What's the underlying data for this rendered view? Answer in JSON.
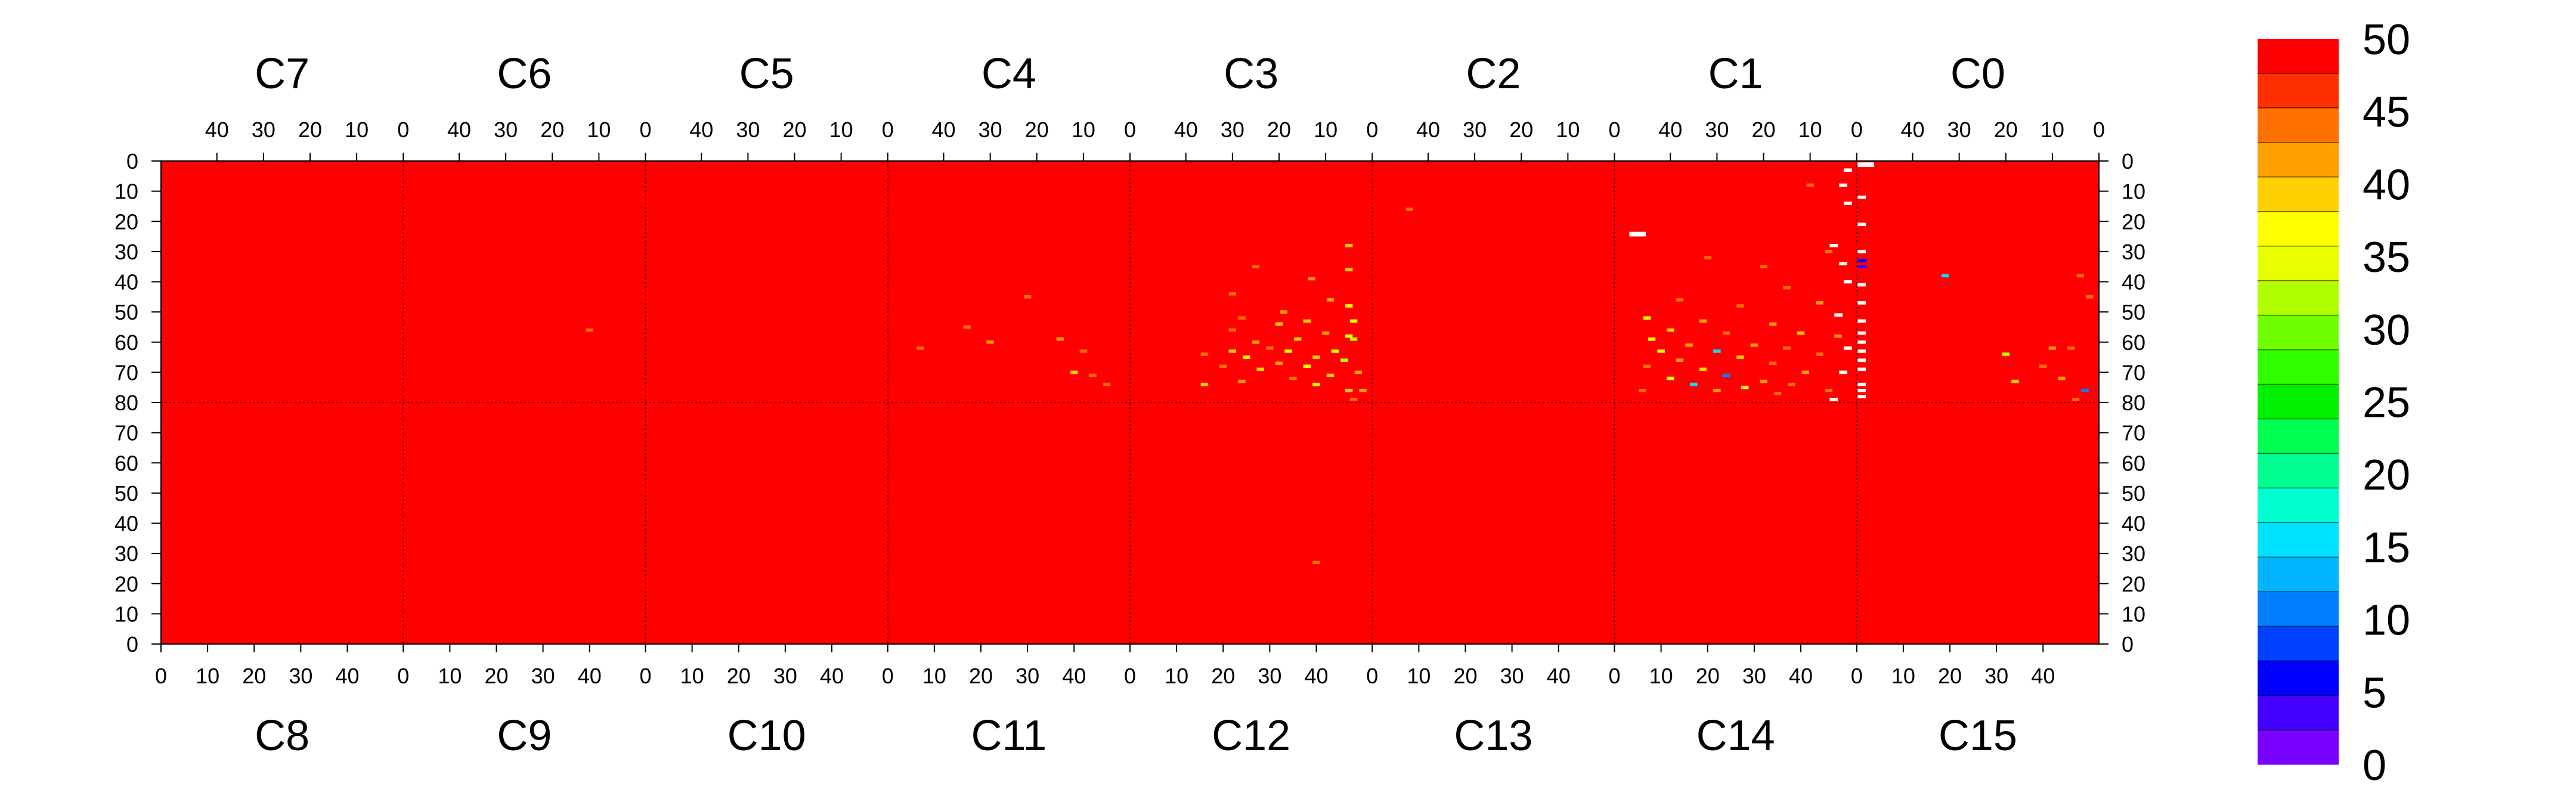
{
  "chart_data": {
    "type": "heatmap",
    "title": "",
    "layout_note": "16 sensor chips arranged in two rows of eight; top row chips C7..C0 with x axis decreasing 40..0 and y axis 0..80 downward; bottom row chips C8..C15 with x axis 0..40 and y axis 80..0 downward",
    "top_row_chips": [
      "C7",
      "C6",
      "C5",
      "C4",
      "C3",
      "C2",
      "C1",
      "C0"
    ],
    "bottom_row_chips": [
      "C8",
      "C9",
      "C10",
      "C11",
      "C12",
      "C13",
      "C14",
      "C15"
    ],
    "top_x_ticks": [
      "40",
      "30",
      "20",
      "10",
      "0"
    ],
    "bottom_x_ticks": [
      "0",
      "10",
      "20",
      "30",
      "40"
    ],
    "y_ticks_top_half": [
      "0",
      "10",
      "20",
      "30",
      "40",
      "50",
      "60",
      "70",
      "80"
    ],
    "y_ticks_bottom_half": [
      "70",
      "60",
      "50",
      "40",
      "30",
      "20",
      "10",
      "0"
    ],
    "x_range_per_chip": [
      0,
      52
    ],
    "y_range_per_chip": [
      0,
      80
    ],
    "background_value": 50,
    "colorbar": {
      "min": 0,
      "max": 50,
      "tick_labels": [
        "0",
        "5",
        "10",
        "15",
        "20",
        "25",
        "30",
        "35",
        "40",
        "45",
        "50"
      ],
      "colors": [
        "#7a00ff",
        "#4400ff",
        "#0000ff",
        "#0040ff",
        "#0080ff",
        "#00b4ff",
        "#00e0ff",
        "#00ffd0",
        "#00ff90",
        "#00ff50",
        "#00f000",
        "#30ff00",
        "#70ff00",
        "#b0ff00",
        "#e8ff00",
        "#ffff00",
        "#ffd000",
        "#ffa000",
        "#ff7000",
        "#ff3000",
        "#ff0000"
      ]
    },
    "anomalies": [
      {
        "chip": "C6",
        "x": 12,
        "y": 56,
        "v": 44
      },
      {
        "chip": "C4",
        "x": 35,
        "y": 55,
        "v": 44
      },
      {
        "chip": "C4",
        "x": 30,
        "y": 60,
        "v": 43
      },
      {
        "chip": "C4",
        "x": 45,
        "y": 62,
        "v": 45
      },
      {
        "chip": "C4",
        "x": 15,
        "y": 59,
        "v": 42
      },
      {
        "chip": "C4",
        "x": 10,
        "y": 63,
        "v": 44
      },
      {
        "chip": "C4",
        "x": 12,
        "y": 70,
        "v": 40
      },
      {
        "chip": "C4",
        "x": 8,
        "y": 71,
        "v": 44
      },
      {
        "chip": "C4",
        "x": 5,
        "y": 74,
        "v": 45
      },
      {
        "chip": "C4",
        "x": 22,
        "y": 45,
        "v": 46
      },
      {
        "chip": "C3",
        "x": 5,
        "y": 28,
        "v": 40
      },
      {
        "chip": "C3",
        "x": 5,
        "y": 36,
        "v": 41
      },
      {
        "chip": "C3",
        "x": 25,
        "y": 35,
        "v": 45
      },
      {
        "chip": "C3",
        "x": 13,
        "y": 39,
        "v": 42
      },
      {
        "chip": "C3",
        "x": 30,
        "y": 44,
        "v": 44
      },
      {
        "chip": "C3",
        "x": 9,
        "y": 46,
        "v": 43
      },
      {
        "chip": "C3",
        "x": 5,
        "y": 48,
        "v": 36
      },
      {
        "chip": "C3",
        "x": 19,
        "y": 50,
        "v": 42
      },
      {
        "chip": "C3",
        "x": 28,
        "y": 52,
        "v": 45
      },
      {
        "chip": "C3",
        "x": 14,
        "y": 53,
        "v": 40
      },
      {
        "chip": "C3",
        "x": 4,
        "y": 53,
        "v": 38
      },
      {
        "chip": "C3",
        "x": 20,
        "y": 54,
        "v": 40
      },
      {
        "chip": "C3",
        "x": 30,
        "y": 56,
        "v": 44
      },
      {
        "chip": "C3",
        "x": 10,
        "y": 57,
        "v": 43
      },
      {
        "chip": "C3",
        "x": 5,
        "y": 58,
        "v": 36
      },
      {
        "chip": "C3",
        "x": 16,
        "y": 59,
        "v": 41
      },
      {
        "chip": "C3",
        "x": 25,
        "y": 60,
        "v": 42
      },
      {
        "chip": "C3",
        "x": 22,
        "y": 62,
        "v": 44
      },
      {
        "chip": "C3",
        "x": 18,
        "y": 63,
        "v": 38
      },
      {
        "chip": "C3",
        "x": 30,
        "y": 63,
        "v": 40
      },
      {
        "chip": "C3",
        "x": 8,
        "y": 63,
        "v": 36
      },
      {
        "chip": "C3",
        "x": 4,
        "y": 59,
        "v": 33
      },
      {
        "chip": "C3",
        "x": 36,
        "y": 64,
        "v": 44
      },
      {
        "chip": "C3",
        "x": 12,
        "y": 65,
        "v": 40
      },
      {
        "chip": "C3",
        "x": 27,
        "y": 65,
        "v": 37
      },
      {
        "chip": "C3",
        "x": 6,
        "y": 66,
        "v": 33
      },
      {
        "chip": "C3",
        "x": 20,
        "y": 67,
        "v": 42
      },
      {
        "chip": "C3",
        "x": 14,
        "y": 68,
        "v": 38
      },
      {
        "chip": "C3",
        "x": 32,
        "y": 68,
        "v": 44
      },
      {
        "chip": "C3",
        "x": 24,
        "y": 69,
        "v": 40
      },
      {
        "chip": "C3",
        "x": 3,
        "y": 70,
        "v": 43
      },
      {
        "chip": "C3",
        "x": 9,
        "y": 71,
        "v": 39
      },
      {
        "chip": "C3",
        "x": 17,
        "y": 72,
        "v": 44
      },
      {
        "chip": "C3",
        "x": 28,
        "y": 73,
        "v": 42
      },
      {
        "chip": "C3",
        "x": 12,
        "y": 74,
        "v": 35
      },
      {
        "chip": "C3",
        "x": 36,
        "y": 74,
        "v": 40
      },
      {
        "chip": "C3",
        "x": 5,
        "y": 76,
        "v": 39
      },
      {
        "chip": "C3",
        "x": 2,
        "y": 76,
        "v": 42
      },
      {
        "chip": "C3",
        "x": 4,
        "y": 79,
        "v": 46
      },
      {
        "chip": "C2",
        "x": 44,
        "y": 16,
        "v": 45
      },
      {
        "chip": "C1",
        "x": 32,
        "y": 32,
        "v": 44
      },
      {
        "chip": "C1",
        "x": 10,
        "y": 8,
        "v": 46
      },
      {
        "chip": "C1",
        "x": 20,
        "y": 35,
        "v": 45
      },
      {
        "chip": "C1",
        "x": 15,
        "y": 42,
        "v": 46
      },
      {
        "chip": "C1",
        "x": 6,
        "y": 30,
        "v": 44
      },
      {
        "chip": "C1",
        "x": 38,
        "y": 46,
        "v": 44
      },
      {
        "chip": "C1",
        "x": 25,
        "y": 48,
        "v": 45
      },
      {
        "chip": "C1",
        "x": 8,
        "y": 47,
        "v": 42
      },
      {
        "chip": "C1",
        "x": 45,
        "y": 52,
        "v": 36
      },
      {
        "chip": "C1",
        "x": 33,
        "y": 53,
        "v": 42
      },
      {
        "chip": "C1",
        "x": 18,
        "y": 54,
        "v": 43
      },
      {
        "chip": "C1",
        "x": 40,
        "y": 56,
        "v": 40
      },
      {
        "chip": "C1",
        "x": 28,
        "y": 57,
        "v": 44
      },
      {
        "chip": "C1",
        "x": 12,
        "y": 57,
        "v": 40
      },
      {
        "chip": "C1",
        "x": 4,
        "y": 58,
        "v": 43
      },
      {
        "chip": "C1",
        "x": 44,
        "y": 59,
        "v": 38
      },
      {
        "chip": "C1",
        "x": 36,
        "y": 61,
        "v": 42
      },
      {
        "chip": "C1",
        "x": 22,
        "y": 61,
        "v": 42
      },
      {
        "chip": "C1",
        "x": 15,
        "y": 62,
        "v": 44
      },
      {
        "chip": "C1",
        "x": 30,
        "y": 63,
        "v": 16
      },
      {
        "chip": "C1",
        "x": 42,
        "y": 63,
        "v": 34
      },
      {
        "chip": "C1",
        "x": 8,
        "y": 64,
        "v": 44
      },
      {
        "chip": "C1",
        "x": 25,
        "y": 65,
        "v": 40
      },
      {
        "chip": "C1",
        "x": 38,
        "y": 66,
        "v": 42
      },
      {
        "chip": "C1",
        "x": 18,
        "y": 67,
        "v": 44
      },
      {
        "chip": "C1",
        "x": 45,
        "y": 68,
        "v": 44
      },
      {
        "chip": "C1",
        "x": 33,
        "y": 69,
        "v": 40
      },
      {
        "chip": "C1",
        "x": 11,
        "y": 70,
        "v": 42
      },
      {
        "chip": "C1",
        "x": 3,
        "y": 70,
        "v": 43
      },
      {
        "chip": "C1",
        "x": 28,
        "y": 71,
        "v": 10
      },
      {
        "chip": "C1",
        "x": 40,
        "y": 72,
        "v": 36
      },
      {
        "chip": "C1",
        "x": 20,
        "y": 73,
        "v": 42
      },
      {
        "chip": "C1",
        "x": 35,
        "y": 74,
        "v": 16
      },
      {
        "chip": "C1",
        "x": 14,
        "y": 74,
        "v": 44
      },
      {
        "chip": "C1",
        "x": 24,
        "y": 75,
        "v": 37
      },
      {
        "chip": "C1",
        "x": 46,
        "y": 76,
        "v": 45
      },
      {
        "chip": "C1",
        "x": 30,
        "y": 76,
        "v": 42
      },
      {
        "chip": "C1",
        "x": 6,
        "y": 76,
        "v": 44
      },
      {
        "chip": "C1",
        "x": 17,
        "y": 77,
        "v": 44
      },
      {
        "chip": "C0",
        "x": 33,
        "y": 38,
        "v": 14
      },
      {
        "chip": "C0",
        "x": 4,
        "y": 38,
        "v": 44
      },
      {
        "chip": "C0",
        "x": 2,
        "y": 45,
        "v": 46
      },
      {
        "chip": "C0",
        "x": 20,
        "y": 64,
        "v": 33
      },
      {
        "chip": "C0",
        "x": 10,
        "y": 62,
        "v": 42
      },
      {
        "chip": "C0",
        "x": 6,
        "y": 62,
        "v": 44
      },
      {
        "chip": "C0",
        "x": 12,
        "y": 68,
        "v": 44
      },
      {
        "chip": "C0",
        "x": 18,
        "y": 73,
        "v": 40
      },
      {
        "chip": "C0",
        "x": 8,
        "y": 72,
        "v": 42
      },
      {
        "chip": "C0",
        "x": 3,
        "y": 76,
        "v": 10
      },
      {
        "chip": "C0",
        "x": 5,
        "y": 79,
        "v": 44
      },
      {
        "chip": "C12",
        "x": 40,
        "y": 27,
        "v": 46
      }
    ],
    "dead_pixels": [
      {
        "chip": "C1",
        "x": 48,
        "y": 24,
        "w": 2
      },
      {
        "chip": "C1",
        "x": 2,
        "y": 3,
        "w": 1
      },
      {
        "chip": "C1",
        "x": 3,
        "y": 8,
        "w": 1
      },
      {
        "chip": "C1",
        "x": 2,
        "y": 14,
        "w": 1
      },
      {
        "chip": "C1",
        "x": 5,
        "y": 28,
        "w": 1
      },
      {
        "chip": "C1",
        "x": 3,
        "y": 34,
        "w": 1
      },
      {
        "chip": "C1",
        "x": 2,
        "y": 40,
        "w": 1
      },
      {
        "chip": "C1",
        "x": 4,
        "y": 51,
        "w": 1
      },
      {
        "chip": "C1",
        "x": 2,
        "y": 62,
        "w": 1
      },
      {
        "chip": "C1",
        "x": 3,
        "y": 70,
        "w": 1
      },
      {
        "chip": "C1",
        "x": 5,
        "y": 79,
        "w": 1
      },
      {
        "chip": "C0",
        "x": 51,
        "y": 1,
        "w": 2
      },
      {
        "chip": "C0",
        "x": 51,
        "y": 12,
        "w": 1
      },
      {
        "chip": "C0",
        "x": 51,
        "y": 21,
        "w": 1
      },
      {
        "chip": "C0",
        "x": 51,
        "y": 30,
        "w": 1
      },
      {
        "chip": "C0",
        "x": 51,
        "y": 41,
        "w": 1
      },
      {
        "chip": "C0",
        "x": 51,
        "y": 47,
        "w": 1
      },
      {
        "chip": "C0",
        "x": 51,
        "y": 53,
        "w": 1
      },
      {
        "chip": "C0",
        "x": 51,
        "y": 57,
        "w": 1
      },
      {
        "chip": "C0",
        "x": 51,
        "y": 60,
        "w": 1
      },
      {
        "chip": "C0",
        "x": 51,
        "y": 63,
        "w": 1
      },
      {
        "chip": "C0",
        "x": 51,
        "y": 66,
        "w": 1
      },
      {
        "chip": "C0",
        "x": 51,
        "y": 69,
        "w": 1
      },
      {
        "chip": "C0",
        "x": 51,
        "y": 74,
        "w": 1
      },
      {
        "chip": "C0",
        "x": 51,
        "y": 76,
        "w": 1
      },
      {
        "chip": "C0",
        "x": 51,
        "y": 78,
        "w": 1
      }
    ],
    "low_value_pixels": [
      {
        "chip": "C0",
        "x": 51,
        "y": 33,
        "v": 4
      },
      {
        "chip": "C0",
        "x": 51,
        "y": 35,
        "v": 3
      }
    ]
  }
}
